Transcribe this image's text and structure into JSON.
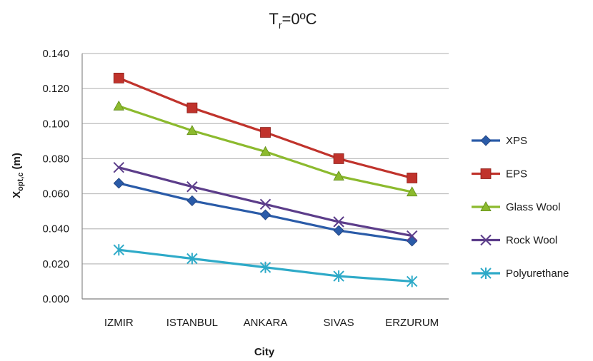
{
  "chart_data": {
    "type": "line",
    "title": {
      "main": "T",
      "sub": "r",
      "rest": "=0ºC"
    },
    "xlabel": "City",
    "ylabel": {
      "main": "X",
      "sub": "opt,c",
      "rest": " (m)"
    },
    "ylim": [
      0,
      0.14
    ],
    "yticks": [
      0,
      0.02,
      0.04,
      0.06,
      0.08,
      0.1,
      0.12,
      0.14
    ],
    "ytick_labels": [
      "0.000",
      "0.020",
      "0.040",
      "0.060",
      "0.080",
      "0.100",
      "0.120",
      "0.140"
    ],
    "grid": "horizontal",
    "legend": "right",
    "categories": [
      "IZMIR",
      "ISTANBUL",
      "ANKARA",
      "SIVAS",
      "ERZURUM"
    ],
    "series": [
      {
        "name": "XPS",
        "color": "#2a5ba8",
        "marker": "diamond",
        "values": [
          0.066,
          0.056,
          0.048,
          0.039,
          0.033
        ]
      },
      {
        "name": "EPS",
        "color": "#c0332c",
        "marker": "square",
        "values": [
          0.126,
          0.109,
          0.095,
          0.08,
          0.069
        ]
      },
      {
        "name": "Glass Wool",
        "color": "#8cba2e",
        "marker": "triangle",
        "values": [
          0.11,
          0.096,
          0.084,
          0.07,
          0.061
        ]
      },
      {
        "name": "Rock Wool",
        "color": "#5c3d8a",
        "marker": "x",
        "values": [
          0.075,
          0.064,
          0.054,
          0.044,
          0.036
        ]
      },
      {
        "name": "Polyurethane",
        "color": "#2eaac8",
        "marker": "star",
        "values": [
          0.028,
          0.023,
          0.018,
          0.013,
          0.01
        ]
      }
    ]
  }
}
